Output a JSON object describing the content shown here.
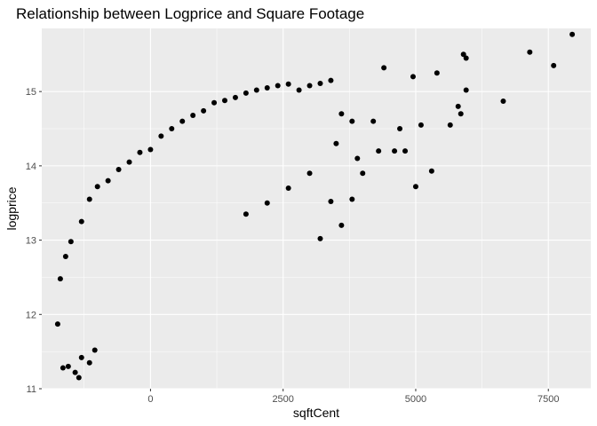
{
  "chart_data": {
    "type": "scatter",
    "title": "Relationship between Logprice and Square Footage",
    "xlabel": "sqftCent",
    "ylabel": "logprice",
    "xlim": [
      -2050,
      8300
    ],
    "ylim": [
      11,
      15.85
    ],
    "xticks": [
      0,
      2500,
      5000,
      7500
    ],
    "xtick_labels": [
      "0",
      "2500",
      "5000",
      "7500"
    ],
    "yticks": [
      11,
      12,
      13,
      14,
      15
    ],
    "ytick_labels": [
      "11",
      "12",
      "13",
      "14",
      "15"
    ],
    "grid": true,
    "legend": "none",
    "background_color": "#ebebeb",
    "grid_color": "#ffffff",
    "point_color": "#000000",
    "series": [
      {
        "points": [
          [
            -1750,
            11.87
          ],
          [
            -1650,
            11.28
          ],
          [
            -1550,
            11.3
          ],
          [
            -1420,
            11.22
          ],
          [
            -1350,
            11.15
          ],
          [
            -1300,
            11.42
          ],
          [
            -1150,
            11.35
          ],
          [
            -1050,
            11.52
          ],
          [
            -1700,
            12.48
          ],
          [
            -1600,
            12.78
          ],
          [
            -1500,
            12.98
          ],
          [
            -1300,
            13.25
          ],
          [
            -1150,
            13.55
          ],
          [
            -1000,
            13.72
          ],
          [
            -800,
            13.8
          ],
          [
            -600,
            13.95
          ],
          [
            -400,
            14.05
          ],
          [
            -200,
            14.18
          ],
          [
            0,
            14.22
          ],
          [
            200,
            14.4
          ],
          [
            400,
            14.5
          ],
          [
            600,
            14.6
          ],
          [
            800,
            14.68
          ],
          [
            1000,
            14.74
          ],
          [
            1200,
            14.85
          ],
          [
            1400,
            14.88
          ],
          [
            1600,
            14.92
          ],
          [
            1800,
            14.98
          ],
          [
            2000,
            15.02
          ],
          [
            2200,
            15.05
          ],
          [
            2400,
            15.08
          ],
          [
            2600,
            15.1
          ],
          [
            2800,
            15.02
          ],
          [
            3000,
            15.08
          ],
          [
            3200,
            15.11
          ],
          [
            3400,
            15.15
          ],
          [
            3600,
            14.7
          ],
          [
            3800,
            14.6
          ],
          [
            1800,
            13.35
          ],
          [
            2200,
            13.5
          ],
          [
            2600,
            13.7
          ],
          [
            3000,
            13.9
          ],
          [
            3200,
            13.02
          ],
          [
            3400,
            13.52
          ],
          [
            3600,
            13.2
          ],
          [
            3800,
            13.55
          ],
          [
            4000,
            13.9
          ],
          [
            4300,
            14.2
          ],
          [
            4400,
            15.32
          ],
          [
            4600,
            14.2
          ],
          [
            4800,
            14.2
          ],
          [
            5000,
            13.72
          ],
          [
            4950,
            15.2
          ],
          [
            5100,
            14.55
          ],
          [
            5300,
            13.93
          ],
          [
            5400,
            15.25
          ],
          [
            5650,
            14.55
          ],
          [
            5800,
            14.8
          ],
          [
            5850,
            14.7
          ],
          [
            5900,
            15.5
          ],
          [
            5950,
            15.45
          ],
          [
            5950,
            15.02
          ],
          [
            6650,
            14.87
          ],
          [
            7150,
            15.53
          ],
          [
            7600,
            15.35
          ],
          [
            7950,
            15.77
          ],
          [
            4700,
            14.5
          ],
          [
            4200,
            14.6
          ],
          [
            3900,
            14.1
          ],
          [
            3500,
            14.3
          ]
        ]
      }
    ]
  }
}
